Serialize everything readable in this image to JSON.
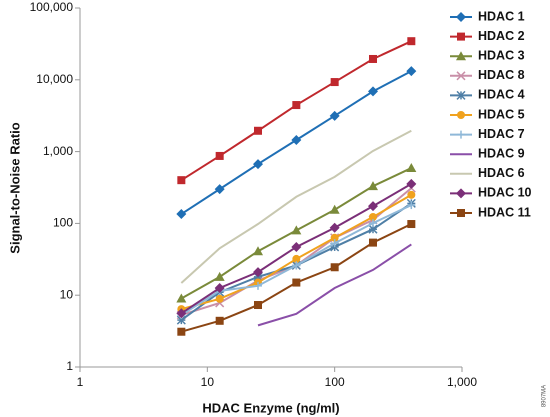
{
  "chart_data": {
    "type": "line",
    "x_label": "HDAC Enzyme (ng/ml)",
    "y_label": "Signal-to-Noise Ratio",
    "annotation": "8907MA",
    "xscale": "log",
    "yscale": "log",
    "xlim": [
      1,
      1000
    ],
    "ylim": [
      1,
      100000
    ],
    "xticks": [
      1,
      10,
      100,
      {
        "value": 1000,
        "label": "1,000"
      }
    ],
    "yticks": [
      1,
      10,
      100,
      {
        "value": 1000,
        "label": "1,000"
      },
      {
        "value": 10000,
        "label": "10,000"
      },
      {
        "value": 100000,
        "label": "100,000"
      }
    ],
    "grid": false,
    "legend": "right",
    "x": [
      6.25,
      12.5,
      25,
      50,
      100,
      200,
      400
    ],
    "series": [
      {
        "name": "HDAC 1",
        "color": "#1f6fb5",
        "marker": "diamond",
        "values": [
          135,
          300,
          670,
          1450,
          3150,
          6900,
          13200
        ]
      },
      {
        "name": "HDAC 2",
        "color": "#c0282d",
        "marker": "square",
        "values": [
          400,
          870,
          1950,
          4450,
          9300,
          19500,
          34500
        ]
      },
      {
        "name": "HDAC 3",
        "color": "#7a8a3a",
        "marker": "triangle",
        "values": [
          9,
          18,
          41,
          80,
          155,
          330,
          590
        ]
      },
      {
        "name": "HDAC 8",
        "color": "#c98fa8",
        "marker": "x",
        "values": [
          5.3,
          7.8,
          16,
          26,
          63,
          112,
          310
        ]
      },
      {
        "name": "HDAC 4",
        "color": "#4f7fa6",
        "marker": "star",
        "values": [
          4.5,
          11,
          18,
          26,
          47,
          83,
          190
        ]
      },
      {
        "name": "HDAC 5",
        "color": "#f0a21e",
        "marker": "circle",
        "values": [
          6.4,
          8.9,
          15,
          32,
          63,
          123,
          250
        ]
      },
      {
        "name": "HDAC 7",
        "color": "#8fb8d8",
        "marker": "plus",
        "values": [
          5.3,
          11.5,
          13.5,
          26,
          53,
          101,
          180
        ]
      },
      {
        "name": "HDAC 9",
        "color": "#8a4fa8",
        "marker": "none",
        "values": [
          null,
          null,
          3.8,
          5.5,
          12.6,
          22.5,
          51
        ]
      },
      {
        "name": "HDAC 6",
        "color": "#c8c8b0",
        "marker": "none",
        "values": [
          14.8,
          45,
          98,
          235,
          445,
          1020,
          1950
        ]
      },
      {
        "name": "HDAC 10",
        "color": "#7b2f78",
        "marker": "diamond",
        "values": [
          5.6,
          12.6,
          21,
          47,
          87,
          174,
          355
        ]
      },
      {
        "name": "HDAC 11",
        "color": "#8b4513",
        "marker": "square",
        "values": [
          3.1,
          4.4,
          7.3,
          15,
          24.5,
          54,
          98
        ]
      }
    ]
  }
}
